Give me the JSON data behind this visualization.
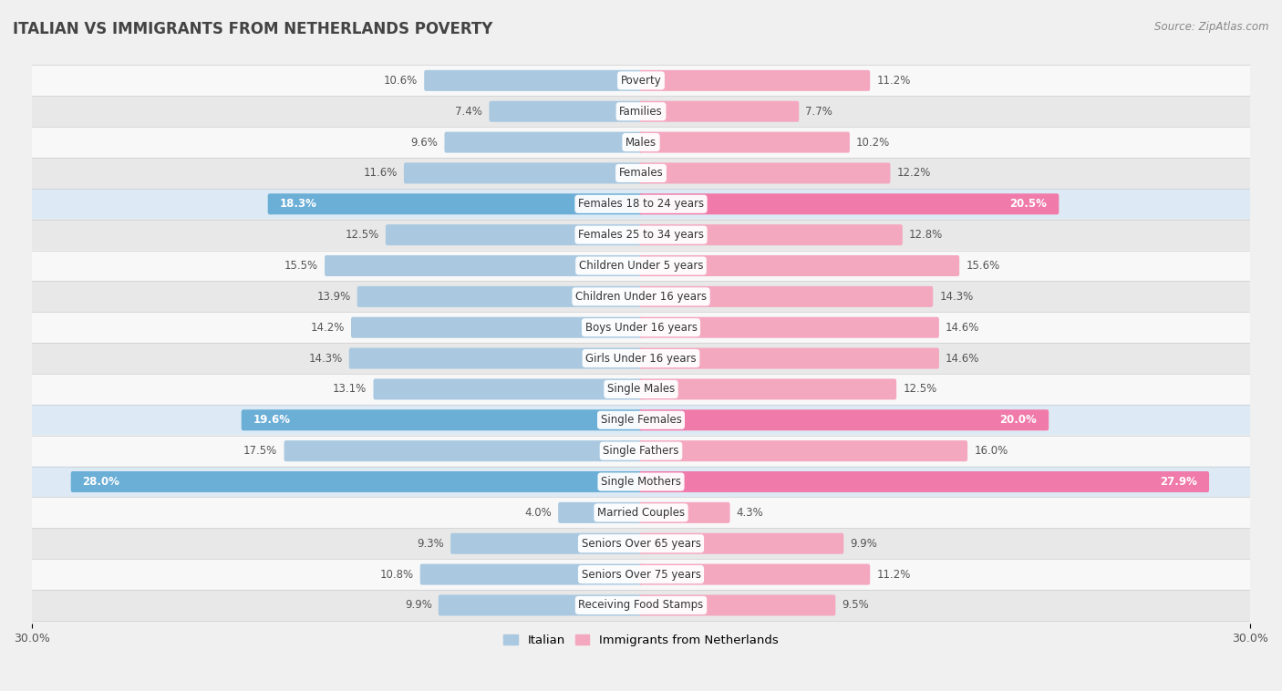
{
  "title": "ITALIAN VS IMMIGRANTS FROM NETHERLANDS POVERTY",
  "source": "Source: ZipAtlas.com",
  "categories": [
    "Poverty",
    "Families",
    "Males",
    "Females",
    "Females 18 to 24 years",
    "Females 25 to 34 years",
    "Children Under 5 years",
    "Children Under 16 years",
    "Boys Under 16 years",
    "Girls Under 16 years",
    "Single Males",
    "Single Females",
    "Single Fathers",
    "Single Mothers",
    "Married Couples",
    "Seniors Over 65 years",
    "Seniors Over 75 years",
    "Receiving Food Stamps"
  ],
  "italian": [
    10.6,
    7.4,
    9.6,
    11.6,
    18.3,
    12.5,
    15.5,
    13.9,
    14.2,
    14.3,
    13.1,
    19.6,
    17.5,
    28.0,
    4.0,
    9.3,
    10.8,
    9.9
  ],
  "netherlands": [
    11.2,
    7.7,
    10.2,
    12.2,
    20.5,
    12.8,
    15.6,
    14.3,
    14.6,
    14.6,
    12.5,
    20.0,
    16.0,
    27.9,
    4.3,
    9.9,
    11.2,
    9.5
  ],
  "highlight_rows": [
    4,
    11,
    13
  ],
  "italian_color_normal": "#aac9e0",
  "italian_color_highlight": "#6baed6",
  "netherlands_color_normal": "#f4a8c0",
  "netherlands_color_highlight": "#f07aaa",
  "bar_height": 0.52,
  "x_max": 30.0,
  "legend_italian": "Italian",
  "legend_netherlands": "Immigrants from Netherlands",
  "background_color": "#f0f0f0",
  "row_bg_even": "#f8f8f8",
  "row_bg_odd": "#e8e8e8",
  "row_bg_highlight": "#ddeaf5"
}
